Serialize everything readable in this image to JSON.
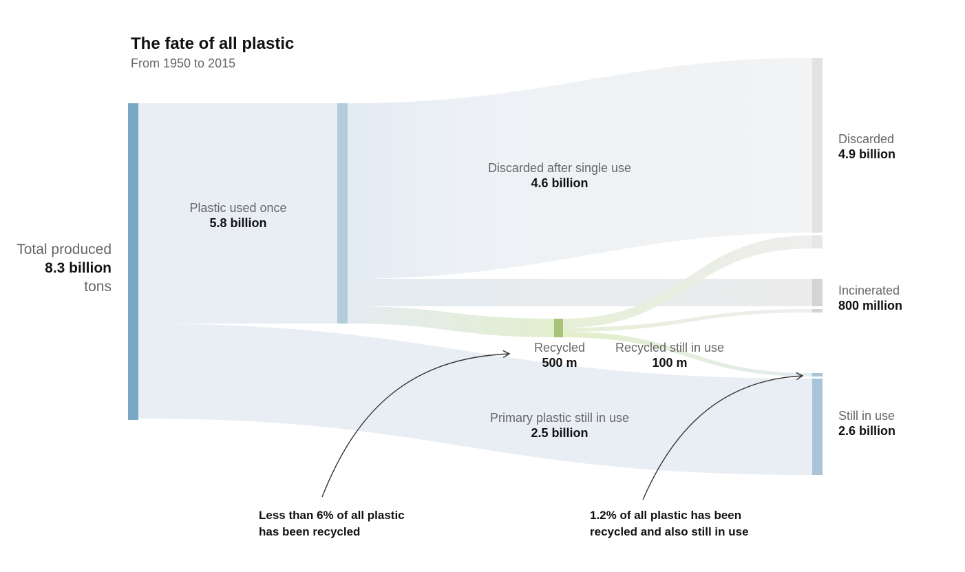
{
  "header": {
    "title": "The fate of all plastic",
    "subtitle": "From 1950 to 2015"
  },
  "nodes": {
    "total": {
      "label": "Total produced",
      "value": "8.3 billion",
      "unit": "tons",
      "amount": 8.3,
      "color": "#7aa8c4"
    },
    "used_once": {
      "label": "Plastic used once",
      "value": "5.8 billion",
      "amount": 5.8,
      "color": "#b3ccdc"
    },
    "recycled": {
      "label": "Recycled",
      "value": "500 m",
      "amount": 0.5,
      "color": "#a9c47a"
    },
    "discarded": {
      "label": "Discarded",
      "value": "4.9 billion",
      "amount": 4.9,
      "color": "#e2e2e2"
    },
    "incinerated": {
      "label": "Incinerated",
      "value": "800 million",
      "amount": 0.8,
      "color": "#d4d4d4"
    },
    "still_in_use": {
      "label": "Still in use",
      "value": "2.6 billion",
      "amount": 2.6,
      "color": "#a9c4d8"
    }
  },
  "flows": {
    "discarded_single_use": {
      "label": "Discarded after single use",
      "value": "4.6 billion",
      "amount": 4.6
    },
    "primary_still_in_use": {
      "label": "Primary plastic still in use",
      "value": "2.5 billion",
      "amount": 2.5
    },
    "recycled_still_in_use": {
      "label": "Recycled still in use",
      "value": "100 m",
      "amount": 0.1
    }
  },
  "annotations": {
    "recycled_note": {
      "line1": "Less than 6% of all plastic",
      "line2": "has been recycled"
    },
    "recycled_in_use_note": {
      "line1": "1.2% of all plastic has been",
      "line2": "recycled and also still in use"
    }
  }
}
